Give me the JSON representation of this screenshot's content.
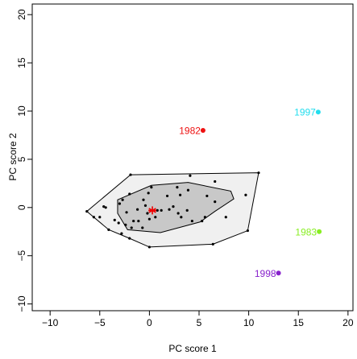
{
  "chart_data": {
    "type": "bagplot",
    "x_label": "PC score 1",
    "y_label": "PC score 2",
    "xlim": [
      -11.8,
      20.5
    ],
    "ylim": [
      -10.7,
      21.1
    ],
    "xticks": [
      {
        "value": -10,
        "label": "−10"
      },
      {
        "value": -5,
        "label": "−5"
      },
      0,
      5,
      10,
      15,
      20
    ],
    "yticks": [
      {
        "value": -10,
        "label": "−10"
      },
      {
        "value": -5,
        "label": "−5"
      },
      0,
      5,
      10,
      15,
      20
    ],
    "fence": {
      "color": "#f0f0f0",
      "x": [
        -6.3,
        -4.1,
        -2.0,
        0.0,
        6.4,
        9.9,
        11.0,
        -1.9
      ],
      "y": [
        -0.4,
        -2.3,
        -3.2,
        -4.1,
        -3.8,
        -2.4,
        3.6,
        3.4
      ]
    },
    "bag": {
      "color": "#c8c8c8",
      "x": [
        -3.2,
        0.2,
        3.9,
        8.2,
        8.5,
        6.6,
        5.1,
        1.1,
        -2.2,
        -3.2
      ],
      "y": [
        0.8,
        2.3,
        2.6,
        1.7,
        0.9,
        -0.4,
        -1.5,
        -2.6,
        -2.3,
        -0.6
      ]
    },
    "points": {
      "color": "#000000",
      "x": [
        -6.3,
        -4.1,
        -2.0,
        0.0,
        6.4,
        9.9,
        11.0,
        -1.9,
        4.1,
        6.6,
        9.7,
        7.7,
        -4.6,
        -5.6,
        -5.0,
        -4.4,
        -3.5,
        -3.1,
        -2.8,
        -3.0,
        -2.7,
        -2.3,
        -2.0,
        -1.6,
        -1.2,
        -1.1,
        -0.7,
        -0.6,
        -0.4,
        -0.2,
        -0.1,
        0.0,
        0.2,
        0.6,
        0.8,
        1.2,
        1.8,
        2.0,
        2.4,
        2.8,
        2.9,
        3.1,
        3.2,
        3.9,
        3.8,
        4.3,
        5.3,
        5.6,
        5.8,
        6.6,
        -1.8,
        -2.4
      ],
      "y": [
        -0.4,
        -2.3,
        -3.2,
        -4.1,
        -3.8,
        -2.4,
        3.6,
        3.4,
        3.3,
        2.7,
        1.3,
        -1.0,
        0.1,
        -1.0,
        -1.0,
        0.0,
        -1.3,
        -1.6,
        -2.7,
        0.4,
        0.8,
        -0.5,
        1.4,
        -1.4,
        -0.2,
        -1.4,
        -2.1,
        0.8,
        0.2,
        -0.6,
        1.5,
        -1.2,
        2.1,
        -1.0,
        -0.3,
        -0.3,
        1.2,
        -0.2,
        0.1,
        2.1,
        -0.6,
        1.3,
        -1.0,
        1.8,
        -0.3,
        -1.4,
        -1.4,
        -1.0,
        1.2,
        0.6,
        -2.1,
        -1.8
      ]
    },
    "median": {
      "x": 0.3,
      "y": -0.3,
      "color": "#ee0000"
    },
    "outliers": [
      {
        "name": "1982",
        "color": "#ee1111",
        "x": 5.4,
        "y": 8.0
      },
      {
        "name": "1997",
        "color": "#22ddee",
        "x": 17.0,
        "y": 9.9
      },
      {
        "name": "1983",
        "color": "#88ee22",
        "x": 17.1,
        "y": -2.5
      },
      {
        "name": "1998",
        "color": "#8822cc",
        "x": 13.0,
        "y": -6.8
      }
    ]
  }
}
